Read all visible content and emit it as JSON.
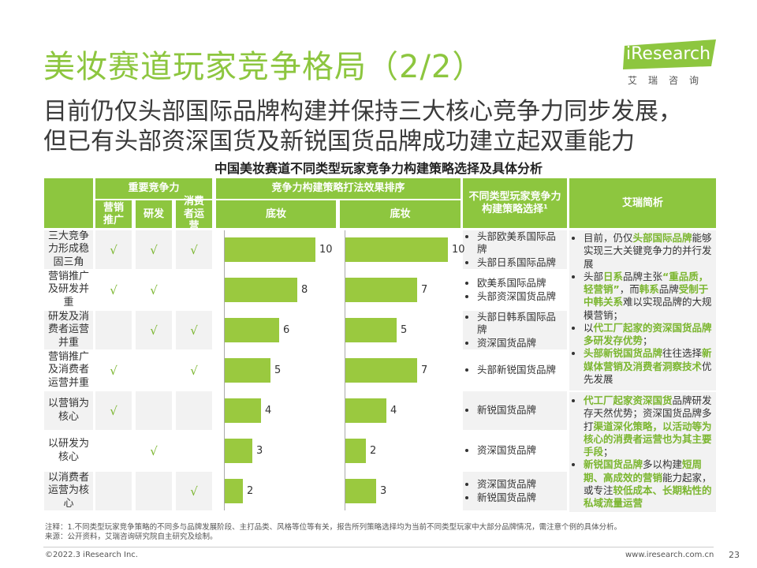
{
  "title": "美妆赛道玩家竞争格局（2/2）",
  "subtitle": {
    "line1": "目前仍仅头部国际品牌构建并保持三大核心竞争力同步发展，",
    "line2": "但已有头部资深国货及新锐国货品牌成功建立起双重能力"
  },
  "logo": {
    "text": "iResearch",
    "cn": "艾瑞咨询",
    "color": "#8dc63f"
  },
  "table": {
    "title": "中国美妆赛道不同类型玩家竞争力构建策略选择及具体分析",
    "headers": {
      "core": "重要竞争力",
      "sub_marketing": "营销推广",
      "sub_rd": "研发",
      "sub_consumer": "消费者运营",
      "effect": "竞争力构建策略打法效果排序",
      "base1": "底妆",
      "base2": "底妆",
      "strategy": "不同类型玩家竞争力构建策略选择¹",
      "analysis": "艾瑞简析"
    },
    "check_mark": "√",
    "rows": [
      {
        "label": "三大竞争力形成稳固三角",
        "m": true,
        "r": true,
        "c": true,
        "v1": 10,
        "v2": 10,
        "brands": [
          "头部欧美系国际品牌",
          "头部日系国际品牌"
        ]
      },
      {
        "label": "营销推广及研发并重",
        "m": true,
        "r": true,
        "c": false,
        "v1": 8,
        "v2": 7,
        "brands": [
          "欧美系国际品牌",
          "头部资深国货品牌"
        ]
      },
      {
        "label": "研发及消费者运营并重",
        "m": false,
        "r": true,
        "c": true,
        "v1": 6,
        "v2": 5,
        "brands": [
          "头部日韩系国际品牌",
          "资深国货品牌"
        ]
      },
      {
        "label": "营销推广及消费者运营并重",
        "m": true,
        "r": false,
        "c": true,
        "v1": 5,
        "v2": 7,
        "brands": [
          "头部新锐国货品牌"
        ]
      },
      {
        "label": "以营销为核心",
        "m": true,
        "r": false,
        "c": false,
        "v1": 4,
        "v2": 4,
        "brands": [
          "新锐国货品牌"
        ]
      },
      {
        "label": "以研发为核心",
        "m": false,
        "r": true,
        "c": false,
        "v1": 3,
        "v2": 2,
        "brands": [
          "资深国货品牌"
        ]
      },
      {
        "label": "以消费者运营为核心",
        "m": false,
        "r": false,
        "c": true,
        "v1": 2,
        "v2": 3,
        "brands": [
          "资深国货品牌",
          "新锐国货品牌"
        ]
      }
    ],
    "analysis": [
      [
        {
          "t": "目前，仍仅"
        },
        {
          "t": "头部国际品牌",
          "h": true
        },
        {
          "t": "能够实现三大关键竞争力的并行发展"
        }
      ],
      [
        {
          "t": "头部"
        },
        {
          "t": "日系",
          "h": true
        },
        {
          "t": "品牌主张"
        },
        {
          "t": "“重品质，轻营销”",
          "h": true
        },
        {
          "t": "，而"
        },
        {
          "t": "韩系",
          "h": true
        },
        {
          "t": "品牌"
        },
        {
          "t": "受制于中韩关系",
          "h": true
        },
        {
          "t": "难以实现品牌的大规模营销；"
        }
      ],
      [
        {
          "t": "以"
        },
        {
          "t": "代工厂起家的资深国货品牌多研发存优势",
          "h": true
        },
        {
          "t": "；"
        }
      ],
      [
        {
          "t": "头部新锐国货品牌",
          "h": true
        },
        {
          "t": "往往选择"
        },
        {
          "t": "新媒体营销及消费者洞察技术",
          "h": true
        },
        {
          "t": "优先发展"
        }
      ],
      [
        {
          "t": "代工厂起家资深国货",
          "h": true
        },
        {
          "t": "品牌研发存天然优势；资深国货品牌多打"
        },
        {
          "t": "渠道深化策略，以活动等为核心的消费者运营也为其主要手段",
          "h": true
        },
        {
          "t": "；"
        }
      ],
      [
        {
          "t": "新锐国货品牌",
          "h": true
        },
        {
          "t": "多以构建"
        },
        {
          "t": "短周期、高成效的营销",
          "h": true
        },
        {
          "t": "能力起家，或专注"
        },
        {
          "t": "较低成本、长期粘性的私域流量运营",
          "h": true
        }
      ]
    ]
  },
  "notes": {
    "note": "注释：1.不同类型玩家竞争策略的不同多与品牌发展阶段、主打品类、风格等位等有关，报告所列策略选择均为当前不同类型玩家中大部分品牌情况，需注意个例的具体分析。",
    "source": "来源：公开资料，艾瑞咨询研究院自主研究及绘制。"
  },
  "footer": {
    "copyright": "©2022.3 iResearch Inc.",
    "url": "www.iresearch.com.cn",
    "page": "23"
  },
  "chart_data": [
    {
      "type": "bar",
      "title": "底妆",
      "categories": [
        "三大竞争力形成稳固三角",
        "营销推广及研发并重",
        "研发及消费者运营并重",
        "营销推广及消费者运营并重",
        "以营销为核心",
        "以研发为核心",
        "以消费者运营为核心"
      ],
      "values": [
        10,
        8,
        6,
        5,
        4,
        3,
        2
      ],
      "xlim": [
        0,
        10
      ]
    },
    {
      "type": "bar",
      "title": "底妆",
      "categories": [
        "三大竞争力形成稳固三角",
        "营销推广及研发并重",
        "研发及消费者运营并重",
        "营销推广及消费者运营并重",
        "以营销为核心",
        "以研发为核心",
        "以消费者运营为核心"
      ],
      "values": [
        10,
        7,
        5,
        7,
        4,
        2,
        3
      ],
      "xlim": [
        0,
        10
      ]
    }
  ]
}
